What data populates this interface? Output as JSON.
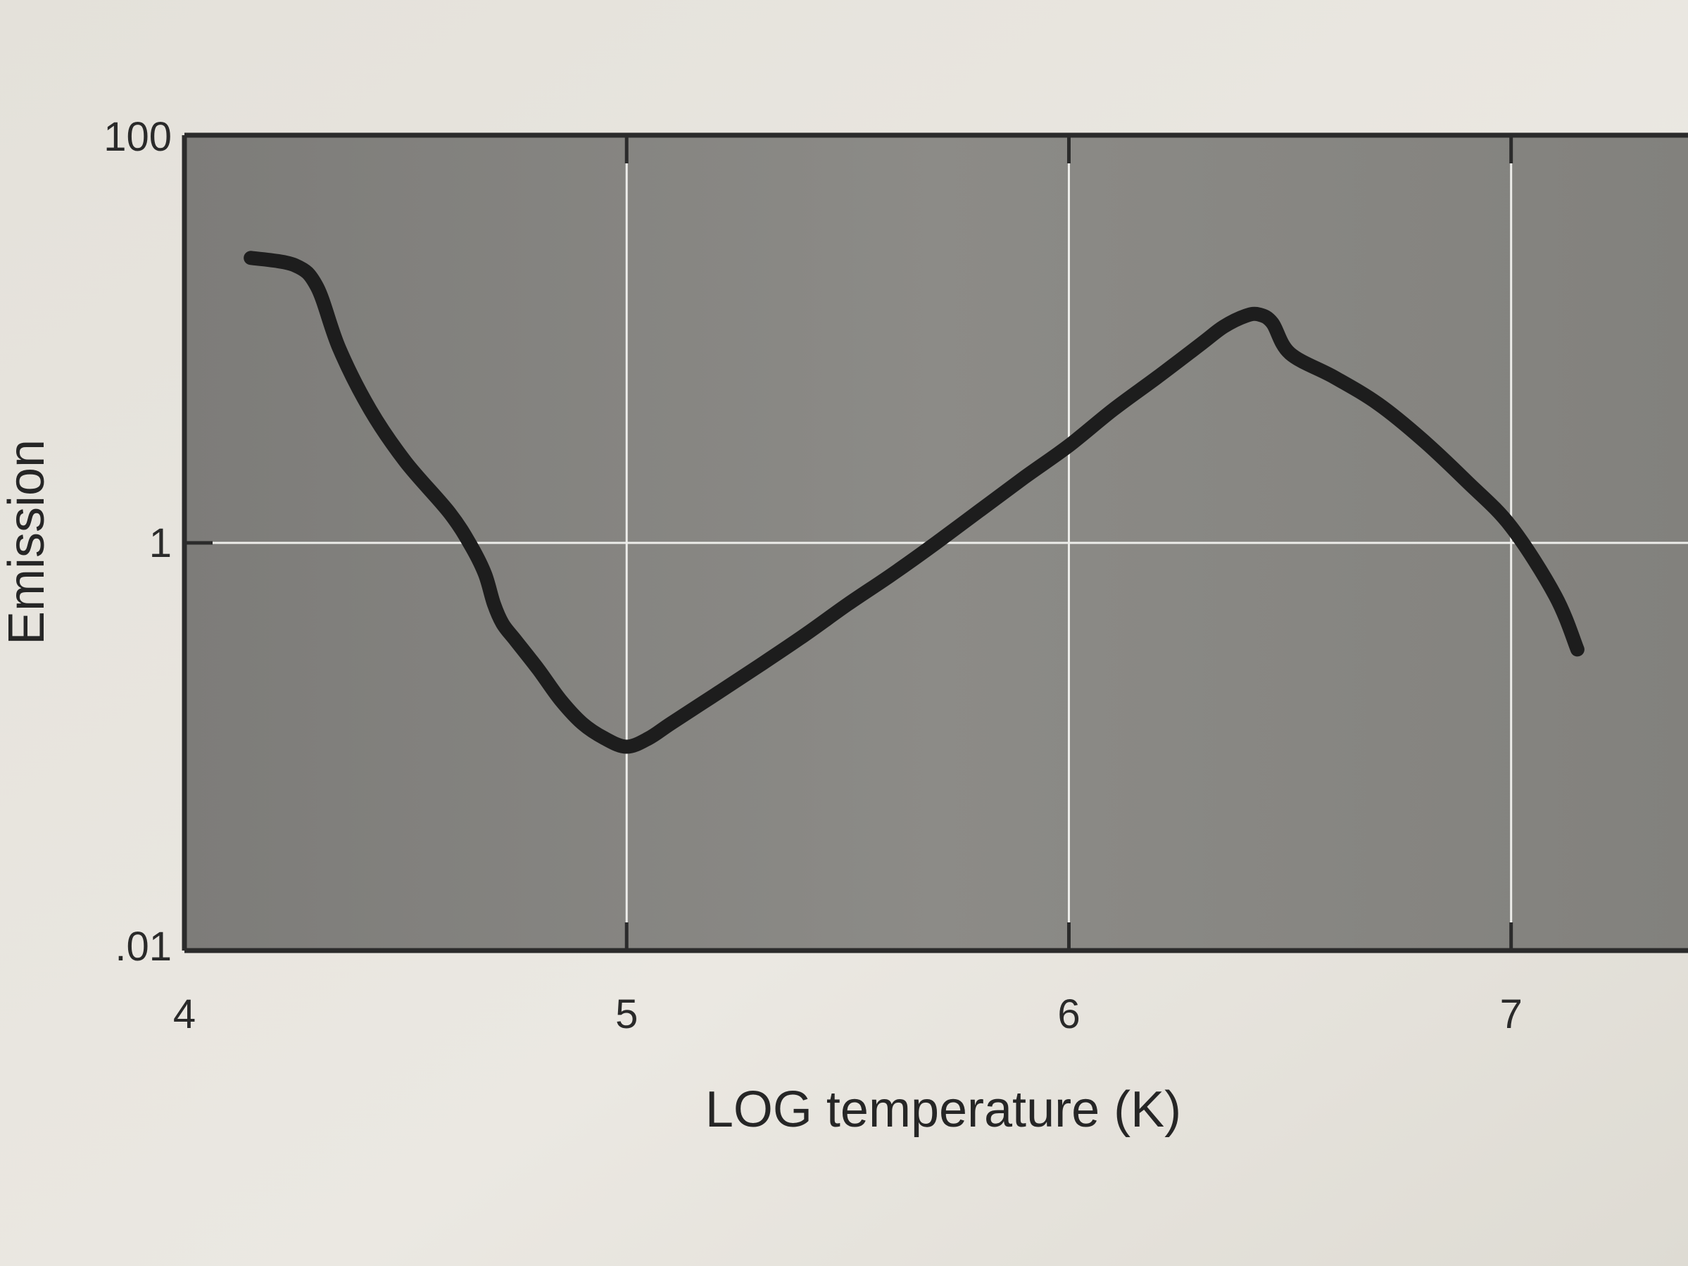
{
  "chart_data": {
    "type": "line",
    "title": "",
    "xlabel": "LOG temperature (K)",
    "ylabel": "Emission",
    "xlim": [
      4,
      7.4
    ],
    "ylim": [
      0.01,
      100
    ],
    "y_scale": "log",
    "x_ticks": [
      {
        "value": 4,
        "label": "4"
      },
      {
        "value": 5,
        "label": "5"
      },
      {
        "value": 6,
        "label": "6"
      },
      {
        "value": 7,
        "label": "7"
      }
    ],
    "y_ticks": [
      {
        "value": 0.01,
        "label": ".01"
      },
      {
        "value": 1,
        "label": "1"
      },
      {
        "value": 100,
        "label": "100"
      }
    ],
    "grid": true,
    "series": [
      {
        "x": [
          4.15,
          4.25,
          4.3,
          4.35,
          4.42,
          4.5,
          4.6,
          4.65,
          4.68,
          4.7,
          4.72,
          4.75,
          4.8,
          4.85,
          4.9,
          4.95,
          5.0,
          5.05,
          5.1,
          5.2,
          5.3,
          5.4,
          5.5,
          5.6,
          5.7,
          5.8,
          5.9,
          6.0,
          6.1,
          6.2,
          6.3,
          6.35,
          6.4,
          6.43,
          6.46,
          6.5,
          6.6,
          6.7,
          6.8,
          6.9,
          7.0,
          7.1,
          7.15
        ],
        "y": [
          25,
          23,
          18,
          9,
          4.5,
          2.5,
          1.4,
          0.95,
          0.7,
          0.5,
          0.4,
          0.33,
          0.24,
          0.17,
          0.13,
          0.11,
          0.1,
          0.11,
          0.13,
          0.18,
          0.25,
          0.35,
          0.5,
          0.7,
          1.0,
          1.45,
          2.1,
          3.0,
          4.5,
          6.5,
          9.5,
          11.5,
          13.0,
          13.2,
          12.0,
          8.5,
          6.5,
          4.8,
          3.2,
          2.0,
          1.2,
          0.55,
          0.3
        ]
      }
    ],
    "colors": {
      "plot_background": "#8a8a87",
      "grid": "#ededea",
      "curve": "#1d1d1d",
      "frame": "#2b2b2b"
    }
  }
}
